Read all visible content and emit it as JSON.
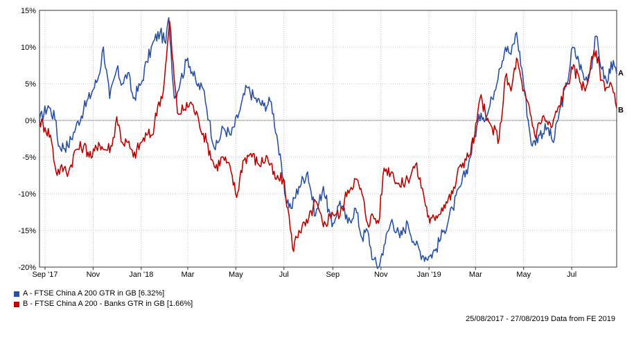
{
  "chart_data": {
    "type": "line",
    "x_ticks": [
      "Sep '17",
      "Nov",
      "Jan '18",
      "Mar",
      "May",
      "Jul",
      "Sep",
      "Nov",
      "Jan '19",
      "Mar",
      "May",
      "Jul"
    ],
    "y_ticks": [
      "15%",
      "10%",
      "5%",
      "0%",
      "-5%",
      "-10%",
      "-15%",
      "-20%"
    ],
    "ylim": [
      -20,
      15
    ],
    "grid": true,
    "legend_position": "bottom-left",
    "series": [
      {
        "label": "A",
        "name": "A - FTSE China A 200 GTR in GB [6.32%]",
        "color": "#2850a8",
        "points": [
          [
            "2017-08-25",
            0
          ],
          [
            "2017-09-05",
            2
          ],
          [
            "2017-09-15",
            0
          ],
          [
            "2017-09-18",
            -3.5
          ],
          [
            "2017-09-30",
            -3.5
          ],
          [
            "2017-10-10",
            -1
          ],
          [
            "2017-10-20",
            1.5
          ],
          [
            "2017-10-31",
            4
          ],
          [
            "2017-11-08",
            6
          ],
          [
            "2017-11-14",
            10
          ],
          [
            "2017-11-22",
            3
          ],
          [
            "2017-12-01",
            7
          ],
          [
            "2017-12-08",
            5
          ],
          [
            "2017-12-15",
            6.5
          ],
          [
            "2017-12-22",
            3
          ],
          [
            "2018-01-01",
            5
          ],
          [
            "2018-01-08",
            8
          ],
          [
            "2018-01-18",
            11
          ],
          [
            "2018-01-25",
            12
          ],
          [
            "2018-02-01",
            10.5
          ],
          [
            "2018-02-05",
            14
          ],
          [
            "2018-02-12",
            3
          ],
          [
            "2018-02-20",
            5.5
          ],
          [
            "2018-03-01",
            8.5
          ],
          [
            "2018-03-12",
            5
          ],
          [
            "2018-03-22",
            4
          ],
          [
            "2018-03-28",
            0
          ],
          [
            "2018-04-05",
            -4
          ],
          [
            "2018-04-15",
            -1
          ],
          [
            "2018-04-25",
            -2
          ],
          [
            "2018-05-05",
            1
          ],
          [
            "2018-05-15",
            4.5
          ],
          [
            "2018-05-25",
            3
          ],
          [
            "2018-06-05",
            2
          ],
          [
            "2018-06-15",
            2.5
          ],
          [
            "2018-06-22",
            -2
          ],
          [
            "2018-07-02",
            -10
          ],
          [
            "2018-07-10",
            -12
          ],
          [
            "2018-07-20",
            -9
          ],
          [
            "2018-07-31",
            -7
          ],
          [
            "2018-08-10",
            -13
          ],
          [
            "2018-08-20",
            -9
          ],
          [
            "2018-08-31",
            -14.5
          ],
          [
            "2018-09-10",
            -11
          ],
          [
            "2018-09-20",
            -14
          ],
          [
            "2018-09-30",
            -12
          ],
          [
            "2018-10-08",
            -16
          ],
          [
            "2018-10-15",
            -15
          ],
          [
            "2018-10-22",
            -19
          ],
          [
            "2018-10-29",
            -20
          ],
          [
            "2018-11-05",
            -17
          ],
          [
            "2018-11-15",
            -13.5
          ],
          [
            "2018-11-25",
            -16
          ],
          [
            "2018-12-05",
            -14
          ],
          [
            "2018-12-15",
            -17
          ],
          [
            "2018-12-25",
            -18.5
          ],
          [
            "2019-01-02",
            -18.5
          ],
          [
            "2019-01-10",
            -17.5
          ],
          [
            "2019-01-20",
            -15
          ],
          [
            "2019-01-31",
            -12
          ],
          [
            "2019-02-10",
            -9
          ],
          [
            "2019-02-20",
            -6
          ],
          [
            "2019-02-28",
            -2
          ],
          [
            "2019-03-08",
            1
          ],
          [
            "2019-03-15",
            0.5
          ],
          [
            "2019-03-22",
            3
          ],
          [
            "2019-03-31",
            7
          ],
          [
            "2019-04-08",
            10
          ],
          [
            "2019-04-15",
            9
          ],
          [
            "2019-04-22",
            12
          ],
          [
            "2019-04-30",
            6
          ],
          [
            "2019-05-08",
            -1
          ],
          [
            "2019-05-12",
            -3.5
          ],
          [
            "2019-05-20",
            -2
          ],
          [
            "2019-05-31",
            -1
          ],
          [
            "2019-06-08",
            -3
          ],
          [
            "2019-06-15",
            1
          ],
          [
            "2019-06-25",
            5
          ],
          [
            "2019-07-02",
            10
          ],
          [
            "2019-07-10",
            8
          ],
          [
            "2019-07-18",
            5.5
          ],
          [
            "2019-07-25",
            7
          ],
          [
            "2019-08-01",
            11.5
          ],
          [
            "2019-08-08",
            7
          ],
          [
            "2019-08-15",
            5
          ],
          [
            "2019-08-20",
            8
          ],
          [
            "2019-08-27",
            6.32
          ]
        ]
      },
      {
        "label": "B",
        "name": "B - FTSE China A 200 - Banks GTR in GB [1.66%]",
        "color": "#c00000",
        "points": [
          [
            "2017-08-25",
            0
          ],
          [
            "2017-09-01",
            -1
          ],
          [
            "2017-09-08",
            -2
          ],
          [
            "2017-09-15",
            -7
          ],
          [
            "2017-09-25",
            -6.5
          ],
          [
            "2017-10-01",
            -7
          ],
          [
            "2017-10-10",
            -4
          ],
          [
            "2017-10-20",
            -3.5
          ],
          [
            "2017-10-31",
            -5
          ],
          [
            "2017-11-08",
            -3
          ],
          [
            "2017-11-15",
            -4
          ],
          [
            "2017-11-25",
            -3.5
          ],
          [
            "2017-12-01",
            0.5
          ],
          [
            "2017-12-08",
            -3
          ],
          [
            "2017-12-15",
            -3
          ],
          [
            "2017-12-22",
            -5
          ],
          [
            "2018-01-01",
            -3
          ],
          [
            "2018-01-08",
            -2
          ],
          [
            "2018-01-15",
            -2
          ],
          [
            "2018-01-22",
            2
          ],
          [
            "2018-01-29",
            4
          ],
          [
            "2018-02-02",
            8.5
          ],
          [
            "2018-02-06",
            13.5
          ],
          [
            "2018-02-12",
            5.5
          ],
          [
            "2018-02-16",
            1
          ],
          [
            "2018-02-25",
            1.5
          ],
          [
            "2018-03-05",
            2.5
          ],
          [
            "2018-03-15",
            0
          ],
          [
            "2018-03-25",
            -3
          ],
          [
            "2018-04-05",
            -6.5
          ],
          [
            "2018-04-15",
            -5
          ],
          [
            "2018-04-25",
            -7
          ],
          [
            "2018-05-02",
            -10.5
          ],
          [
            "2018-05-10",
            -5.5
          ],
          [
            "2018-05-20",
            -4.5
          ],
          [
            "2018-05-30",
            -6
          ],
          [
            "2018-06-10",
            -5
          ],
          [
            "2018-06-20",
            -8
          ],
          [
            "2018-06-30",
            -8
          ],
          [
            "2018-07-06",
            -12
          ],
          [
            "2018-07-12",
            -17.5
          ],
          [
            "2018-07-20",
            -15
          ],
          [
            "2018-07-31",
            -14
          ],
          [
            "2018-08-10",
            -11
          ],
          [
            "2018-08-20",
            -14.5
          ],
          [
            "2018-08-31",
            -12.5
          ],
          [
            "2018-09-10",
            -13
          ],
          [
            "2018-09-20",
            -9.5
          ],
          [
            "2018-09-30",
            -8
          ],
          [
            "2018-10-08",
            -10
          ],
          [
            "2018-10-15",
            -14
          ],
          [
            "2018-10-22",
            -13
          ],
          [
            "2018-10-29",
            -14
          ],
          [
            "2018-11-05",
            -6.5
          ],
          [
            "2018-11-15",
            -7
          ],
          [
            "2018-11-25",
            -9
          ],
          [
            "2018-12-05",
            -8
          ],
          [
            "2018-12-15",
            -6
          ],
          [
            "2018-12-25",
            -10
          ],
          [
            "2019-01-02",
            -14
          ],
          [
            "2019-01-10",
            -13
          ],
          [
            "2019-01-20",
            -11.5
          ],
          [
            "2019-01-31",
            -10
          ],
          [
            "2019-02-10",
            -6
          ],
          [
            "2019-02-20",
            -5
          ],
          [
            "2019-02-28",
            -2
          ],
          [
            "2019-03-08",
            3.5
          ],
          [
            "2019-03-15",
            0
          ],
          [
            "2019-03-22",
            -1
          ],
          [
            "2019-03-31",
            -2.5
          ],
          [
            "2019-04-08",
            6
          ],
          [
            "2019-04-15",
            4
          ],
          [
            "2019-04-22",
            8.5
          ],
          [
            "2019-04-30",
            4
          ],
          [
            "2019-05-08",
            2
          ],
          [
            "2019-05-15",
            -2
          ],
          [
            "2019-05-25",
            0.5
          ],
          [
            "2019-06-05",
            -1
          ],
          [
            "2019-06-15",
            2
          ],
          [
            "2019-06-25",
            5
          ],
          [
            "2019-07-02",
            7
          ],
          [
            "2019-07-10",
            6
          ],
          [
            "2019-07-18",
            4
          ],
          [
            "2019-07-25",
            7.5
          ],
          [
            "2019-08-01",
            9.5
          ],
          [
            "2019-08-08",
            5.5
          ],
          [
            "2019-08-15",
            4.5
          ],
          [
            "2019-08-20",
            5
          ],
          [
            "2019-08-27",
            1.66
          ]
        ]
      }
    ]
  },
  "footer": {
    "range_text": "25/08/2017 - 27/08/2019 Data from FE 2019"
  }
}
